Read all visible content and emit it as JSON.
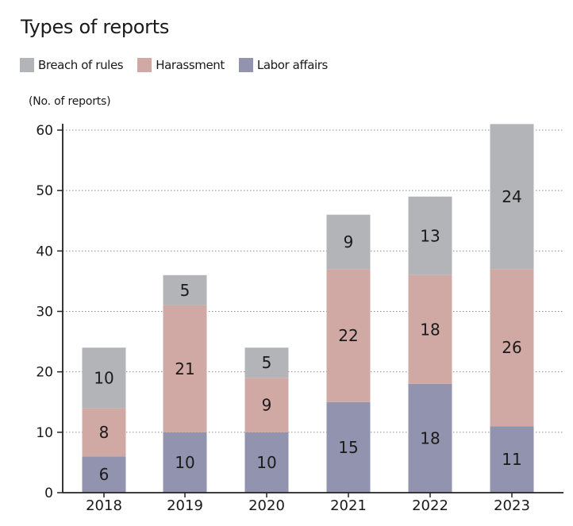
{
  "title": "Types of reports",
  "unit_label": "(No. of reports)",
  "legend": [
    {
      "name": "Breach of rules",
      "color": "#b3b4b7"
    },
    {
      "name": "Harassment",
      "color": "#d1a9a4"
    },
    {
      "name": "Labor affairs",
      "color": "#9293ae"
    }
  ],
  "chart_data": {
    "type": "bar",
    "stacked": true,
    "title": "Types of reports",
    "ylabel": "(No. of reports)",
    "xlabel": "",
    "categories": [
      "2018",
      "2019",
      "2020",
      "2021",
      "2022",
      "2023"
    ],
    "series": [
      {
        "name": "Labor affairs",
        "values": [
          6,
          10,
          10,
          15,
          18,
          11
        ],
        "color": "#9293ae"
      },
      {
        "name": "Harassment",
        "values": [
          8,
          21,
          9,
          22,
          18,
          26
        ],
        "color": "#d1a9a4"
      },
      {
        "name": "Breach of rules",
        "values": [
          10,
          5,
          5,
          9,
          13,
          24
        ],
        "color": "#b3b4b7"
      }
    ],
    "ylim": [
      0,
      60
    ],
    "yticks": [
      0,
      10,
      20,
      30,
      40,
      50,
      60
    ],
    "grid": "horizontal-dotted",
    "legend_position": "top-left"
  }
}
